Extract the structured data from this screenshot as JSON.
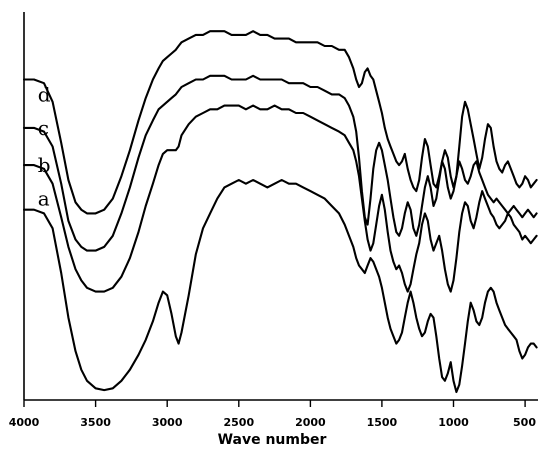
{
  "chart_data": {
    "type": "line",
    "title": "",
    "xlabel": "Wave number",
    "ylabel": "",
    "xlim": [
      4000,
      410
    ],
    "ylim": [
      0,
      100
    ],
    "x_reversed": true,
    "y_ticks_shown": false,
    "grid": false,
    "xticks": [
      {
        "value": 4000,
        "label": "4000"
      },
      {
        "value": 3500,
        "label": "3500"
      },
      {
        "value": 3000,
        "label": "3000"
      },
      {
        "value": 2500,
        "label": "2500"
      },
      {
        "value": 2000,
        "label": "2000"
      },
      {
        "value": 1500,
        "label": "1500"
      },
      {
        "value": 1000,
        "label": "1000"
      },
      {
        "value": 500,
        "label": "500"
      }
    ],
    "series": [
      {
        "name": "a",
        "label_x": 3960,
        "label_y": 52,
        "x": [
          4000,
          3930,
          3860,
          3800,
          3740,
          3690,
          3640,
          3600,
          3560,
          3500,
          3440,
          3380,
          3320,
          3260,
          3200,
          3150,
          3100,
          3060,
          3030,
          3000,
          2970,
          2940,
          2920,
          2900,
          2850,
          2800,
          2750,
          2700,
          2650,
          2600,
          2550,
          2500,
          2450,
          2400,
          2350,
          2300,
          2250,
          2200,
          2150,
          2100,
          2050,
          2000,
          1950,
          1900,
          1850,
          1800,
          1760,
          1730,
          1700,
          1680,
          1660,
          1640,
          1620,
          1600,
          1580,
          1560,
          1540,
          1520,
          1500,
          1480,
          1460,
          1440,
          1420,
          1400,
          1380,
          1360,
          1340,
          1320,
          1300,
          1280,
          1260,
          1240,
          1220,
          1200,
          1180,
          1160,
          1140,
          1120,
          1100,
          1080,
          1060,
          1040,
          1020,
          1000,
          980,
          960,
          940,
          920,
          900,
          880,
          860,
          840,
          820,
          800,
          780,
          760,
          740,
          720,
          700,
          680,
          660,
          640,
          620,
          600,
          580,
          560,
          540,
          520,
          500,
          480,
          460,
          440,
          420
        ],
        "y": [
          49,
          49,
          48,
          44,
          32,
          20,
          11,
          6,
          3,
          1,
          0.5,
          1,
          3,
          6,
          10,
          14,
          19,
          24,
          27,
          26,
          21,
          15,
          13,
          16,
          26,
          37,
          44,
          48,
          52,
          55,
          56,
          57,
          56,
          57,
          56,
          55,
          56,
          57,
          56,
          56,
          55,
          54,
          53,
          52,
          50,
          48,
          45,
          42,
          39,
          36,
          34,
          33,
          32,
          34,
          36,
          35,
          33,
          31,
          28,
          24,
          20,
          17,
          15,
          13,
          14,
          16,
          20,
          24,
          27,
          24,
          20,
          17,
          15,
          16,
          19,
          21,
          20,
          15,
          9,
          4,
          3,
          5,
          8,
          3,
          0,
          2,
          7,
          13,
          19,
          24,
          22,
          19,
          18,
          20,
          24,
          27,
          28,
          27,
          24,
          22,
          20,
          18,
          17,
          16,
          15,
          14,
          11,
          9,
          10,
          12,
          13,
          13,
          12
        ]
      },
      {
        "name": "b",
        "label_x": 3960,
        "label_y": 61,
        "x": [
          4000,
          3930,
          3860,
          3800,
          3740,
          3690,
          3640,
          3600,
          3560,
          3500,
          3440,
          3380,
          3320,
          3260,
          3200,
          3150,
          3100,
          3060,
          3030,
          3000,
          2970,
          2940,
          2920,
          2900,
          2850,
          2800,
          2750,
          2700,
          2650,
          2600,
          2550,
          2500,
          2450,
          2400,
          2350,
          2300,
          2250,
          2200,
          2150,
          2100,
          2050,
          2000,
          1950,
          1900,
          1850,
          1800,
          1760,
          1730,
          1700,
          1680,
          1660,
          1640,
          1620,
          1600,
          1580,
          1560,
          1540,
          1520,
          1500,
          1480,
          1460,
          1440,
          1420,
          1400,
          1380,
          1360,
          1340,
          1320,
          1300,
          1280,
          1260,
          1240,
          1220,
          1200,
          1180,
          1160,
          1140,
          1120,
          1100,
          1080,
          1060,
          1040,
          1020,
          1000,
          980,
          960,
          940,
          920,
          900,
          880,
          860,
          840,
          820,
          800,
          780,
          760,
          740,
          720,
          700,
          680,
          660,
          640,
          620,
          600,
          580,
          560,
          540,
          520,
          500,
          480,
          460,
          440,
          420
        ],
        "y": [
          61,
          61,
          60,
          56,
          47,
          39,
          33,
          30,
          28,
          27,
          27,
          28,
          31,
          36,
          43,
          50,
          56,
          61,
          64,
          65,
          65,
          65,
          66,
          69,
          72,
          74,
          75,
          76,
          76,
          77,
          77,
          77,
          76,
          77,
          76,
          76,
          77,
          76,
          76,
          75,
          75,
          74,
          73,
          72,
          71,
          70,
          69,
          67,
          65,
          62,
          58,
          52,
          46,
          41,
          38,
          40,
          45,
          50,
          53,
          49,
          43,
          38,
          35,
          33,
          34,
          32,
          29,
          27,
          29,
          33,
          37,
          40,
          45,
          48,
          46,
          41,
          38,
          40,
          42,
          38,
          33,
          29,
          27,
          30,
          36,
          43,
          48,
          51,
          50,
          46,
          44,
          47,
          51,
          54,
          52,
          50,
          48,
          47,
          45,
          44,
          45,
          46,
          48,
          47,
          45,
          44,
          43,
          41,
          42,
          41,
          40,
          41,
          42
        ]
      },
      {
        "name": "c",
        "label_x": 3960,
        "label_y": 71,
        "x": [
          4000,
          3930,
          3860,
          3800,
          3740,
          3690,
          3640,
          3600,
          3560,
          3500,
          3440,
          3380,
          3320,
          3260,
          3200,
          3150,
          3100,
          3060,
          3030,
          3000,
          2970,
          2940,
          2920,
          2900,
          2850,
          2800,
          2750,
          2700,
          2650,
          2600,
          2550,
          2500,
          2450,
          2400,
          2350,
          2300,
          2250,
          2200,
          2150,
          2100,
          2050,
          2000,
          1950,
          1900,
          1850,
          1800,
          1760,
          1730,
          1700,
          1680,
          1660,
          1640,
          1620,
          1600,
          1580,
          1560,
          1540,
          1520,
          1500,
          1480,
          1460,
          1440,
          1420,
          1400,
          1380,
          1360,
          1340,
          1320,
          1300,
          1280,
          1260,
          1240,
          1220,
          1200,
          1180,
          1160,
          1140,
          1120,
          1100,
          1080,
          1060,
          1040,
          1020,
          1000,
          980,
          960,
          940,
          920,
          900,
          880,
          860,
          840,
          820,
          800,
          780,
          760,
          740,
          720,
          700,
          680,
          660,
          640,
          620,
          600,
          580,
          560,
          540,
          520,
          500,
          480,
          460,
          440,
          420
        ],
        "y": [
          71,
          71,
          70,
          66,
          56,
          46,
          41,
          39,
          38,
          38,
          39,
          42,
          48,
          55,
          63,
          69,
          73,
          76,
          77,
          78,
          79,
          80,
          81,
          82,
          83,
          84,
          84,
          85,
          85,
          85,
          84,
          84,
          84,
          85,
          84,
          84,
          84,
          84,
          83,
          83,
          83,
          82,
          82,
          81,
          80,
          80,
          79,
          77,
          74,
          70,
          63,
          54,
          47,
          45,
          52,
          60,
          65,
          67,
          65,
          61,
          57,
          52,
          47,
          43,
          42,
          44,
          48,
          51,
          49,
          44,
          42,
          45,
          50,
          55,
          58,
          55,
          50,
          52,
          57,
          62,
          60,
          55,
          52,
          54,
          58,
          62,
          60,
          57,
          56,
          58,
          61,
          62,
          59,
          57,
          55,
          53,
          52,
          51,
          52,
          51,
          50,
          49,
          48,
          49,
          50,
          49,
          48,
          47,
          48,
          49,
          48,
          47,
          48
        ]
      },
      {
        "name": "d",
        "label_x": 3960,
        "label_y": 80,
        "x": [
          4000,
          3930,
          3860,
          3800,
          3740,
          3690,
          3640,
          3600,
          3560,
          3500,
          3440,
          3380,
          3320,
          3260,
          3200,
          3150,
          3100,
          3060,
          3030,
          3000,
          2970,
          2940,
          2920,
          2900,
          2850,
          2800,
          2750,
          2700,
          2650,
          2600,
          2550,
          2500,
          2450,
          2400,
          2350,
          2300,
          2250,
          2200,
          2150,
          2100,
          2050,
          2000,
          1950,
          1900,
          1850,
          1800,
          1760,
          1730,
          1700,
          1680,
          1660,
          1640,
          1620,
          1600,
          1580,
          1560,
          1540,
          1520,
          1500,
          1480,
          1460,
          1440,
          1420,
          1400,
          1380,
          1360,
          1340,
          1320,
          1300,
          1280,
          1260,
          1240,
          1220,
          1200,
          1180,
          1160,
          1140,
          1120,
          1100,
          1080,
          1060,
          1040,
          1020,
          1000,
          980,
          960,
          940,
          920,
          900,
          880,
          860,
          840,
          820,
          800,
          780,
          760,
          740,
          720,
          700,
          680,
          660,
          640,
          620,
          600,
          580,
          560,
          540,
          520,
          500,
          480,
          460,
          440,
          420
        ],
        "y": [
          84,
          84,
          83,
          78,
          67,
          57,
          51,
          49,
          48,
          48,
          49,
          52,
          58,
          65,
          73,
          79,
          84,
          87,
          89,
          90,
          91,
          92,
          93,
          94,
          95,
          96,
          96,
          97,
          97,
          97,
          96,
          96,
          96,
          97,
          96,
          96,
          95,
          95,
          95,
          94,
          94,
          94,
          94,
          93,
          93,
          92,
          92,
          90,
          87,
          84,
          82,
          83,
          86,
          87,
          85,
          84,
          81,
          78,
          75,
          71,
          68,
          66,
          64,
          62,
          61,
          62,
          64,
          60,
          57,
          55,
          54,
          57,
          63,
          68,
          66,
          61,
          56,
          55,
          58,
          62,
          65,
          63,
          58,
          55,
          58,
          66,
          74,
          78,
          76,
          72,
          68,
          64,
          60,
          63,
          68,
          72,
          71,
          66,
          62,
          60,
          59,
          61,
          62,
          60,
          58,
          56,
          55,
          56,
          58,
          57,
          55,
          56,
          57
        ]
      }
    ]
  }
}
